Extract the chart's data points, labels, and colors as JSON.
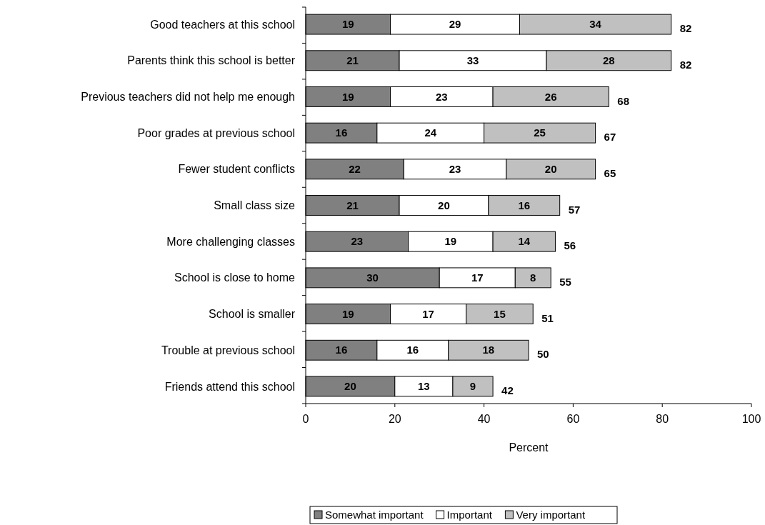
{
  "chart_data": {
    "type": "bar",
    "orientation": "horizontal",
    "stacked": true,
    "xlabel": "Percent",
    "categories": [
      "Good teachers at this school",
      "Parents think this school is better",
      "Previous teachers did not help me enough",
      "Poor grades at previous school",
      "Fewer student conflicts",
      "Small class size",
      "More challenging classes",
      "School is close to home",
      "School is smaller",
      "Trouble at previous school",
      "Friends attend this school"
    ],
    "series": [
      {
        "name": "Somewhat important",
        "color": "#808080",
        "values": [
          19,
          21,
          19,
          16,
          22,
          21,
          23,
          30,
          19,
          16,
          20
        ]
      },
      {
        "name": "Important",
        "color": "#ffffff",
        "values": [
          29,
          33,
          23,
          24,
          23,
          20,
          19,
          17,
          17,
          16,
          13
        ]
      },
      {
        "name": "Very important",
        "color": "#c0c0c0",
        "values": [
          34,
          28,
          26,
          25,
          20,
          16,
          14,
          8,
          15,
          18,
          9
        ]
      }
    ],
    "totals": [
      "82",
      "82",
      "68",
      "67",
      "65",
      "57",
      "56",
      "55",
      "51",
      "50",
      "42"
    ],
    "xlim": [
      0,
      100
    ],
    "xticks": [
      0,
      20,
      40,
      60,
      80,
      100
    ],
    "grid": false,
    "data_labels": true,
    "legend": "bottom"
  }
}
